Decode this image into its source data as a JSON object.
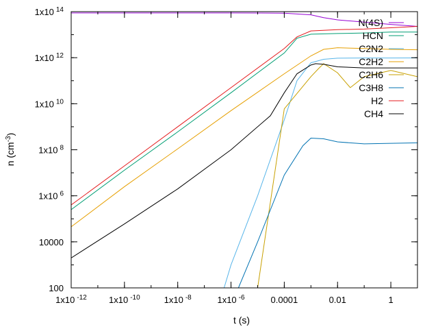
{
  "chart_data": {
    "type": "line",
    "xlabel": "t (s)",
    "ylabel": "n (cm^-3)",
    "x_scale": "log",
    "y_scale": "log",
    "xlim": [
      1e-12,
      10
    ],
    "ylim": [
      100,
      100000000000000.0
    ],
    "grid": false,
    "legend_position": "top-right",
    "x_ticks": [
      {
        "value": 1e-12,
        "base": "1x10",
        "exp": "-12"
      },
      {
        "value": 1e-10,
        "base": "1x10",
        "exp": "-10"
      },
      {
        "value": 1e-08,
        "base": "1x10",
        "exp": "-8"
      },
      {
        "value": 1e-06,
        "base": "1x10",
        "exp": "-6"
      },
      {
        "value": 0.0001,
        "base": "0.0001",
        "exp": ""
      },
      {
        "value": 0.01,
        "base": "0.01",
        "exp": ""
      },
      {
        "value": 1,
        "base": "1",
        "exp": ""
      }
    ],
    "y_ticks": [
      {
        "value": 100,
        "base": "100",
        "exp": ""
      },
      {
        "value": 10000,
        "base": "10000",
        "exp": ""
      },
      {
        "value": 1000000.0,
        "base": "1x10",
        "exp": "6"
      },
      {
        "value": 100000000.0,
        "base": "1x10",
        "exp": "8"
      },
      {
        "value": 10000000000.0,
        "base": "1x10",
        "exp": "10"
      },
      {
        "value": 1000000000000.0,
        "base": "1x10",
        "exp": "12"
      },
      {
        "value": 100000000000000.0,
        "base": "1x10",
        "exp": "14"
      }
    ],
    "series": [
      {
        "name": "N(4S)",
        "color": "#9400d3",
        "points": [
          [
            1e-12,
            88000000000000.0
          ],
          [
            1e-06,
            88000000000000.0
          ],
          [
            0.0001,
            86000000000000.0
          ],
          [
            0.001,
            73000000000000.0
          ],
          [
            0.003,
            55000000000000.0
          ],
          [
            0.01,
            44000000000000.0
          ],
          [
            0.1,
            35000000000000.0
          ],
          [
            1,
            28000000000000.0
          ],
          [
            10,
            23000000000000.0
          ]
        ]
      },
      {
        "name": "HCN",
        "color": "#009e73",
        "points": [
          [
            1e-12,
            250000.0
          ],
          [
            1e-10,
            13000000.0
          ],
          [
            1e-08,
            600000000.0
          ],
          [
            1e-06,
            30000000000.0
          ],
          [
            0.0001,
            1600000000000.0
          ],
          [
            0.0003,
            7000000000000.0
          ],
          [
            0.001,
            10500000000000.0
          ],
          [
            0.01,
            11200000000000.0
          ],
          [
            0.1,
            11800000000000.0
          ],
          [
            1,
            13000000000000.0
          ],
          [
            10,
            13000000000000.0
          ]
        ]
      },
      {
        "name": "C2N2",
        "color": "#56b4e9",
        "points": [
          [
            5.5e-07,
            100
          ],
          [
            1e-06,
            1000.0
          ],
          [
            1e-05,
            1000000.0
          ],
          [
            0.0001,
            2000000000.0
          ],
          [
            0.0003,
            100000000000.0
          ],
          [
            0.001,
            600000000000.0
          ],
          [
            0.003,
            850000000000.0
          ],
          [
            0.01,
            950000000000.0
          ],
          [
            0.1,
            970000000000.0
          ],
          [
            1,
            970000000000.0
          ],
          [
            10,
            980000000000.0
          ]
        ]
      },
      {
        "name": "C2H2",
        "color": "#e69f00",
        "points": [
          [
            1e-12,
            45000.0
          ],
          [
            1e-10,
            2500000.0
          ],
          [
            1e-08,
            110000000.0
          ],
          [
            1e-06,
            5000000000.0
          ],
          [
            0.0001,
            200000000000.0
          ],
          [
            0.001,
            1200000000000.0
          ],
          [
            0.003,
            2300000000000.0
          ],
          [
            0.01,
            2700000000000.0
          ],
          [
            0.1,
            2500000000000.0
          ],
          [
            1,
            2300000000000.0
          ],
          [
            10,
            2200000000000.0
          ]
        ]
      },
      {
        "name": "C2H6",
        "color": "#c8a000",
        "points": [
          [
            1e-12,
            100
          ],
          [
            1e-05,
            100
          ],
          [
            0.0001,
            6000000000.0
          ],
          [
            0.001,
            150000000000.0
          ],
          [
            0.002,
            350000000000.0
          ],
          [
            0.003,
            550000000000.0
          ],
          [
            0.01,
            220000000000.0
          ],
          [
            0.03,
            50000000000.0
          ],
          [
            0.1,
            150000000000.0
          ],
          [
            1,
            280000000000.0
          ],
          [
            10,
            150000000000.0
          ]
        ]
      },
      {
        "name": "C3H8",
        "color": "#0072b2",
        "points": [
          [
            1.9e-06,
            100
          ],
          [
            1e-05,
            10000.0
          ],
          [
            0.0001,
            8000000.0
          ],
          [
            0.0005,
            150000000.0
          ],
          [
            0.001,
            320000000.0
          ],
          [
            0.003,
            300000000.0
          ],
          [
            0.01,
            220000000.0
          ],
          [
            0.1,
            180000000.0
          ],
          [
            1,
            190000000.0
          ],
          [
            10,
            200000000.0
          ]
        ]
      },
      {
        "name": "H2",
        "color": "#e41a1c",
        "points": [
          [
            1e-12,
            400000.0
          ],
          [
            1e-10,
            20000000.0
          ],
          [
            1e-08,
            1000000000.0
          ],
          [
            1e-06,
            50000000000.0
          ],
          [
            0.0001,
            2500000000000.0
          ],
          [
            0.0003,
            8000000000000.0
          ],
          [
            0.001,
            14500000000000.0
          ],
          [
            0.01,
            16500000000000.0
          ],
          [
            0.1,
            17500000000000.0
          ],
          [
            1,
            20000000000000.0
          ],
          [
            10,
            23000000000000.0
          ]
        ]
      },
      {
        "name": "CH4",
        "color": "#000000",
        "points": [
          [
            1e-12,
            2000.0
          ],
          [
            1e-10,
            60000.0
          ],
          [
            1e-08,
            2000000.0
          ],
          [
            1e-06,
            100000000.0
          ],
          [
            3e-05,
            3000000000.0
          ],
          [
            0.0001,
            30000000000.0
          ],
          [
            0.0003,
            200000000000.0
          ],
          [
            0.001,
            480000000000.0
          ],
          [
            0.0015,
            550000000000.0
          ],
          [
            0.003,
            520000000000.0
          ],
          [
            0.01,
            400000000000.0
          ],
          [
            0.1,
            360000000000.0
          ],
          [
            1,
            360000000000.0
          ],
          [
            10,
            360000000000.0
          ]
        ]
      }
    ]
  }
}
